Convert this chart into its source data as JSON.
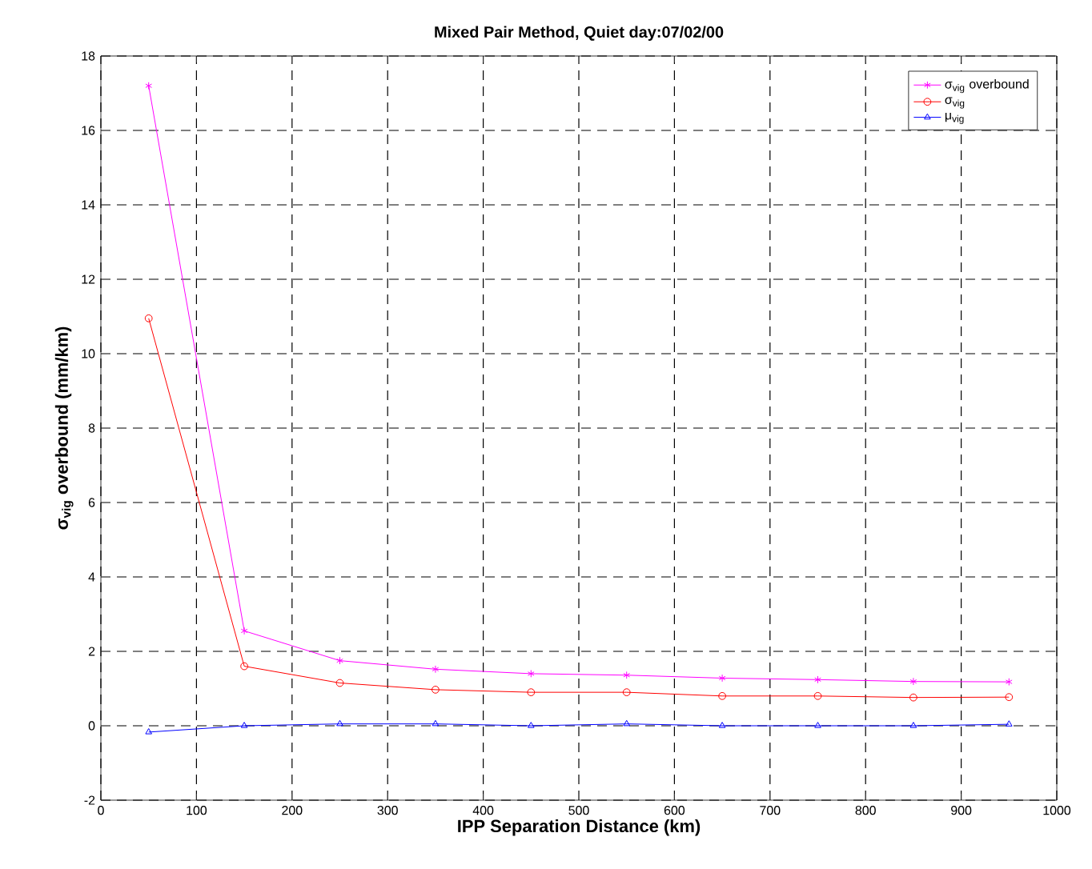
{
  "chart_data": {
    "type": "line",
    "title": "Mixed Pair Method, Quiet day:07/02/00",
    "xlabel": "IPP Separation Distance (km)",
    "ylabel": "σ$_{vig}$ overbound (mm/km)",
    "x": [
      50,
      150,
      250,
      350,
      450,
      550,
      650,
      750,
      850,
      950
    ],
    "series": [
      {
        "name": "σ$_{vig}$ overbound",
        "color": "#ff00ff",
        "marker": "cross",
        "values": [
          17.2,
          2.55,
          1.75,
          1.52,
          1.4,
          1.36,
          1.28,
          1.24,
          1.19,
          1.18
        ]
      },
      {
        "name": "σ$_{vig}$",
        "color": "#ff0000",
        "marker": "circle",
        "values": [
          10.95,
          1.6,
          1.15,
          0.97,
          0.9,
          0.9,
          0.8,
          0.8,
          0.76,
          0.77
        ]
      },
      {
        "name": "μ$_{vig}$",
        "color": "#0000ff",
        "marker": "triangle",
        "values": [
          -0.17,
          0.0,
          0.05,
          0.05,
          0.0,
          0.05,
          0.0,
          0.0,
          0.0,
          0.04
        ]
      }
    ],
    "xlim": [
      0,
      1000
    ],
    "ylim": [
      -2,
      18
    ],
    "xticks": [
      0,
      100,
      200,
      300,
      400,
      500,
      600,
      700,
      800,
      900,
      1000
    ],
    "yticks": [
      -2,
      0,
      2,
      4,
      6,
      8,
      10,
      12,
      14,
      16,
      18
    ],
    "grid": true,
    "legend": "top right",
    "line_style": "solid"
  }
}
